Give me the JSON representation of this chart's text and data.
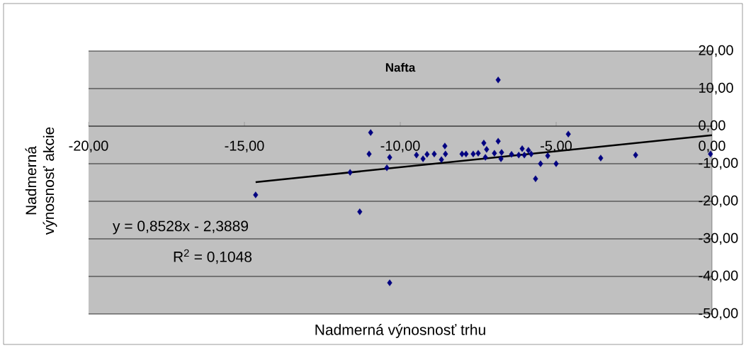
{
  "chart_data": {
    "type": "scatter",
    "title": "Nafta",
    "xlabel": "Nadmerná výnosnosť trhu",
    "ylabel": "Nadmerná výnosnosť akcie",
    "xlim": [
      -20,
      0
    ],
    "ylim": [
      -50,
      20
    ],
    "xticks": [
      {
        "value": -20,
        "label": "-20,00"
      },
      {
        "value": -15,
        "label": "-15,00"
      },
      {
        "value": -10,
        "label": "-10,00"
      },
      {
        "value": -5,
        "label": "-5,00"
      },
      {
        "value": 0,
        "label": "0,00"
      }
    ],
    "yticks": [
      {
        "value": -50,
        "label": "-50,00"
      },
      {
        "value": -40,
        "label": "-40,00"
      },
      {
        "value": -30,
        "label": "-30,00"
      },
      {
        "value": -20,
        "label": "-20,00"
      },
      {
        "value": -10,
        "label": "-10,00"
      },
      {
        "value": 0,
        "label": "0,00"
      },
      {
        "value": 10,
        "label": "10,00"
      },
      {
        "value": 20,
        "label": "20,00"
      }
    ],
    "grid": "y",
    "marker": "diamond",
    "series": [
      {
        "color": "#000080",
        "x": [
          -14.64,
          -11.61,
          -11.3,
          -10.95,
          -11.0,
          -10.43,
          -10.34,
          -10.34,
          -9.48,
          -9.27,
          -9.14,
          -8.91,
          -8.68,
          -8.57,
          -8.55,
          -8.02,
          -7.89,
          -7.66,
          -7.5,
          -7.32,
          -7.23,
          -7.27,
          -6.86,
          -6.86,
          -6.98,
          -6.75,
          -6.77,
          -6.43,
          -6.2,
          -6.09,
          -6.02,
          -5.89,
          -5.8,
          -5.66,
          -5.5,
          -5.27,
          -5.0,
          -4.61,
          -3.57,
          -2.45,
          -0.05
        ],
        "values": [
          -18.3,
          -12.3,
          -22.8,
          -1.7,
          -7.4,
          -11.1,
          -41.7,
          -8.3,
          -7.7,
          -8.7,
          -7.5,
          -7.4,
          -8.9,
          -5.3,
          -7.4,
          -7.4,
          -7.4,
          -7.4,
          -7.2,
          -4.5,
          -6.2,
          -8.3,
          12.3,
          -4.0,
          -7.2,
          -7.0,
          -8.7,
          -7.5,
          -7.7,
          -6.0,
          -7.7,
          -6.4,
          -7.4,
          -14.0,
          -10.0,
          -7.9,
          -10.0,
          -2.1,
          -8.5,
          -7.7,
          -7.4
        ]
      },
      {
        "type": "line",
        "color": "#000000",
        "marker": "none",
        "x": [
          -14.64,
          0
        ],
        "values": [
          -14.9,
          -2.4
        ]
      }
    ],
    "annotations": [
      {
        "text": "y = 0,8528x - 2,3889"
      },
      {
        "text": "R$^{2}$ = 0,1048"
      }
    ]
  }
}
